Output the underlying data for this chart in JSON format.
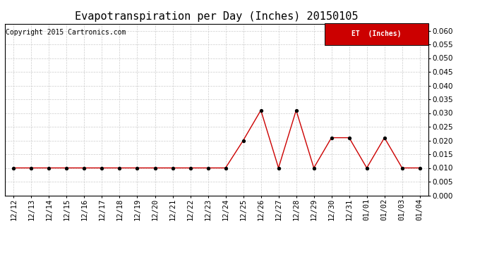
{
  "title": "Evapotranspiration per Day (Inches) 20150105",
  "copyright_text": "Copyright 2015 Cartronics.com",
  "legend_label": "ET  (Inches)",
  "legend_bg": "#cc0000",
  "legend_text_color": "#ffffff",
  "line_color": "#cc0000",
  "marker_color": "black",
  "background_color": "#ffffff",
  "grid_color": "#cccccc",
  "dates": [
    "12/12",
    "12/13",
    "12/14",
    "12/15",
    "12/16",
    "12/17",
    "12/18",
    "12/19",
    "12/20",
    "12/21",
    "12/22",
    "12/23",
    "12/24",
    "12/25",
    "12/26",
    "12/27",
    "12/28",
    "12/29",
    "12/30",
    "12/31",
    "01/01",
    "01/02",
    "01/03",
    "01/04"
  ],
  "values": [
    0.01,
    0.01,
    0.01,
    0.01,
    0.01,
    0.01,
    0.01,
    0.01,
    0.01,
    0.01,
    0.01,
    0.01,
    0.01,
    0.02,
    0.031,
    0.01,
    0.031,
    0.01,
    0.021,
    0.021,
    0.01,
    0.021,
    0.01,
    0.01
  ],
  "ylim": [
    0.0,
    0.0625
  ],
  "yticks": [
    0.0,
    0.005,
    0.01,
    0.015,
    0.02,
    0.025,
    0.03,
    0.035,
    0.04,
    0.045,
    0.05,
    0.055,
    0.06
  ],
  "title_fontsize": 11,
  "copyright_fontsize": 7,
  "tick_fontsize": 7.5,
  "legend_fontsize": 7
}
